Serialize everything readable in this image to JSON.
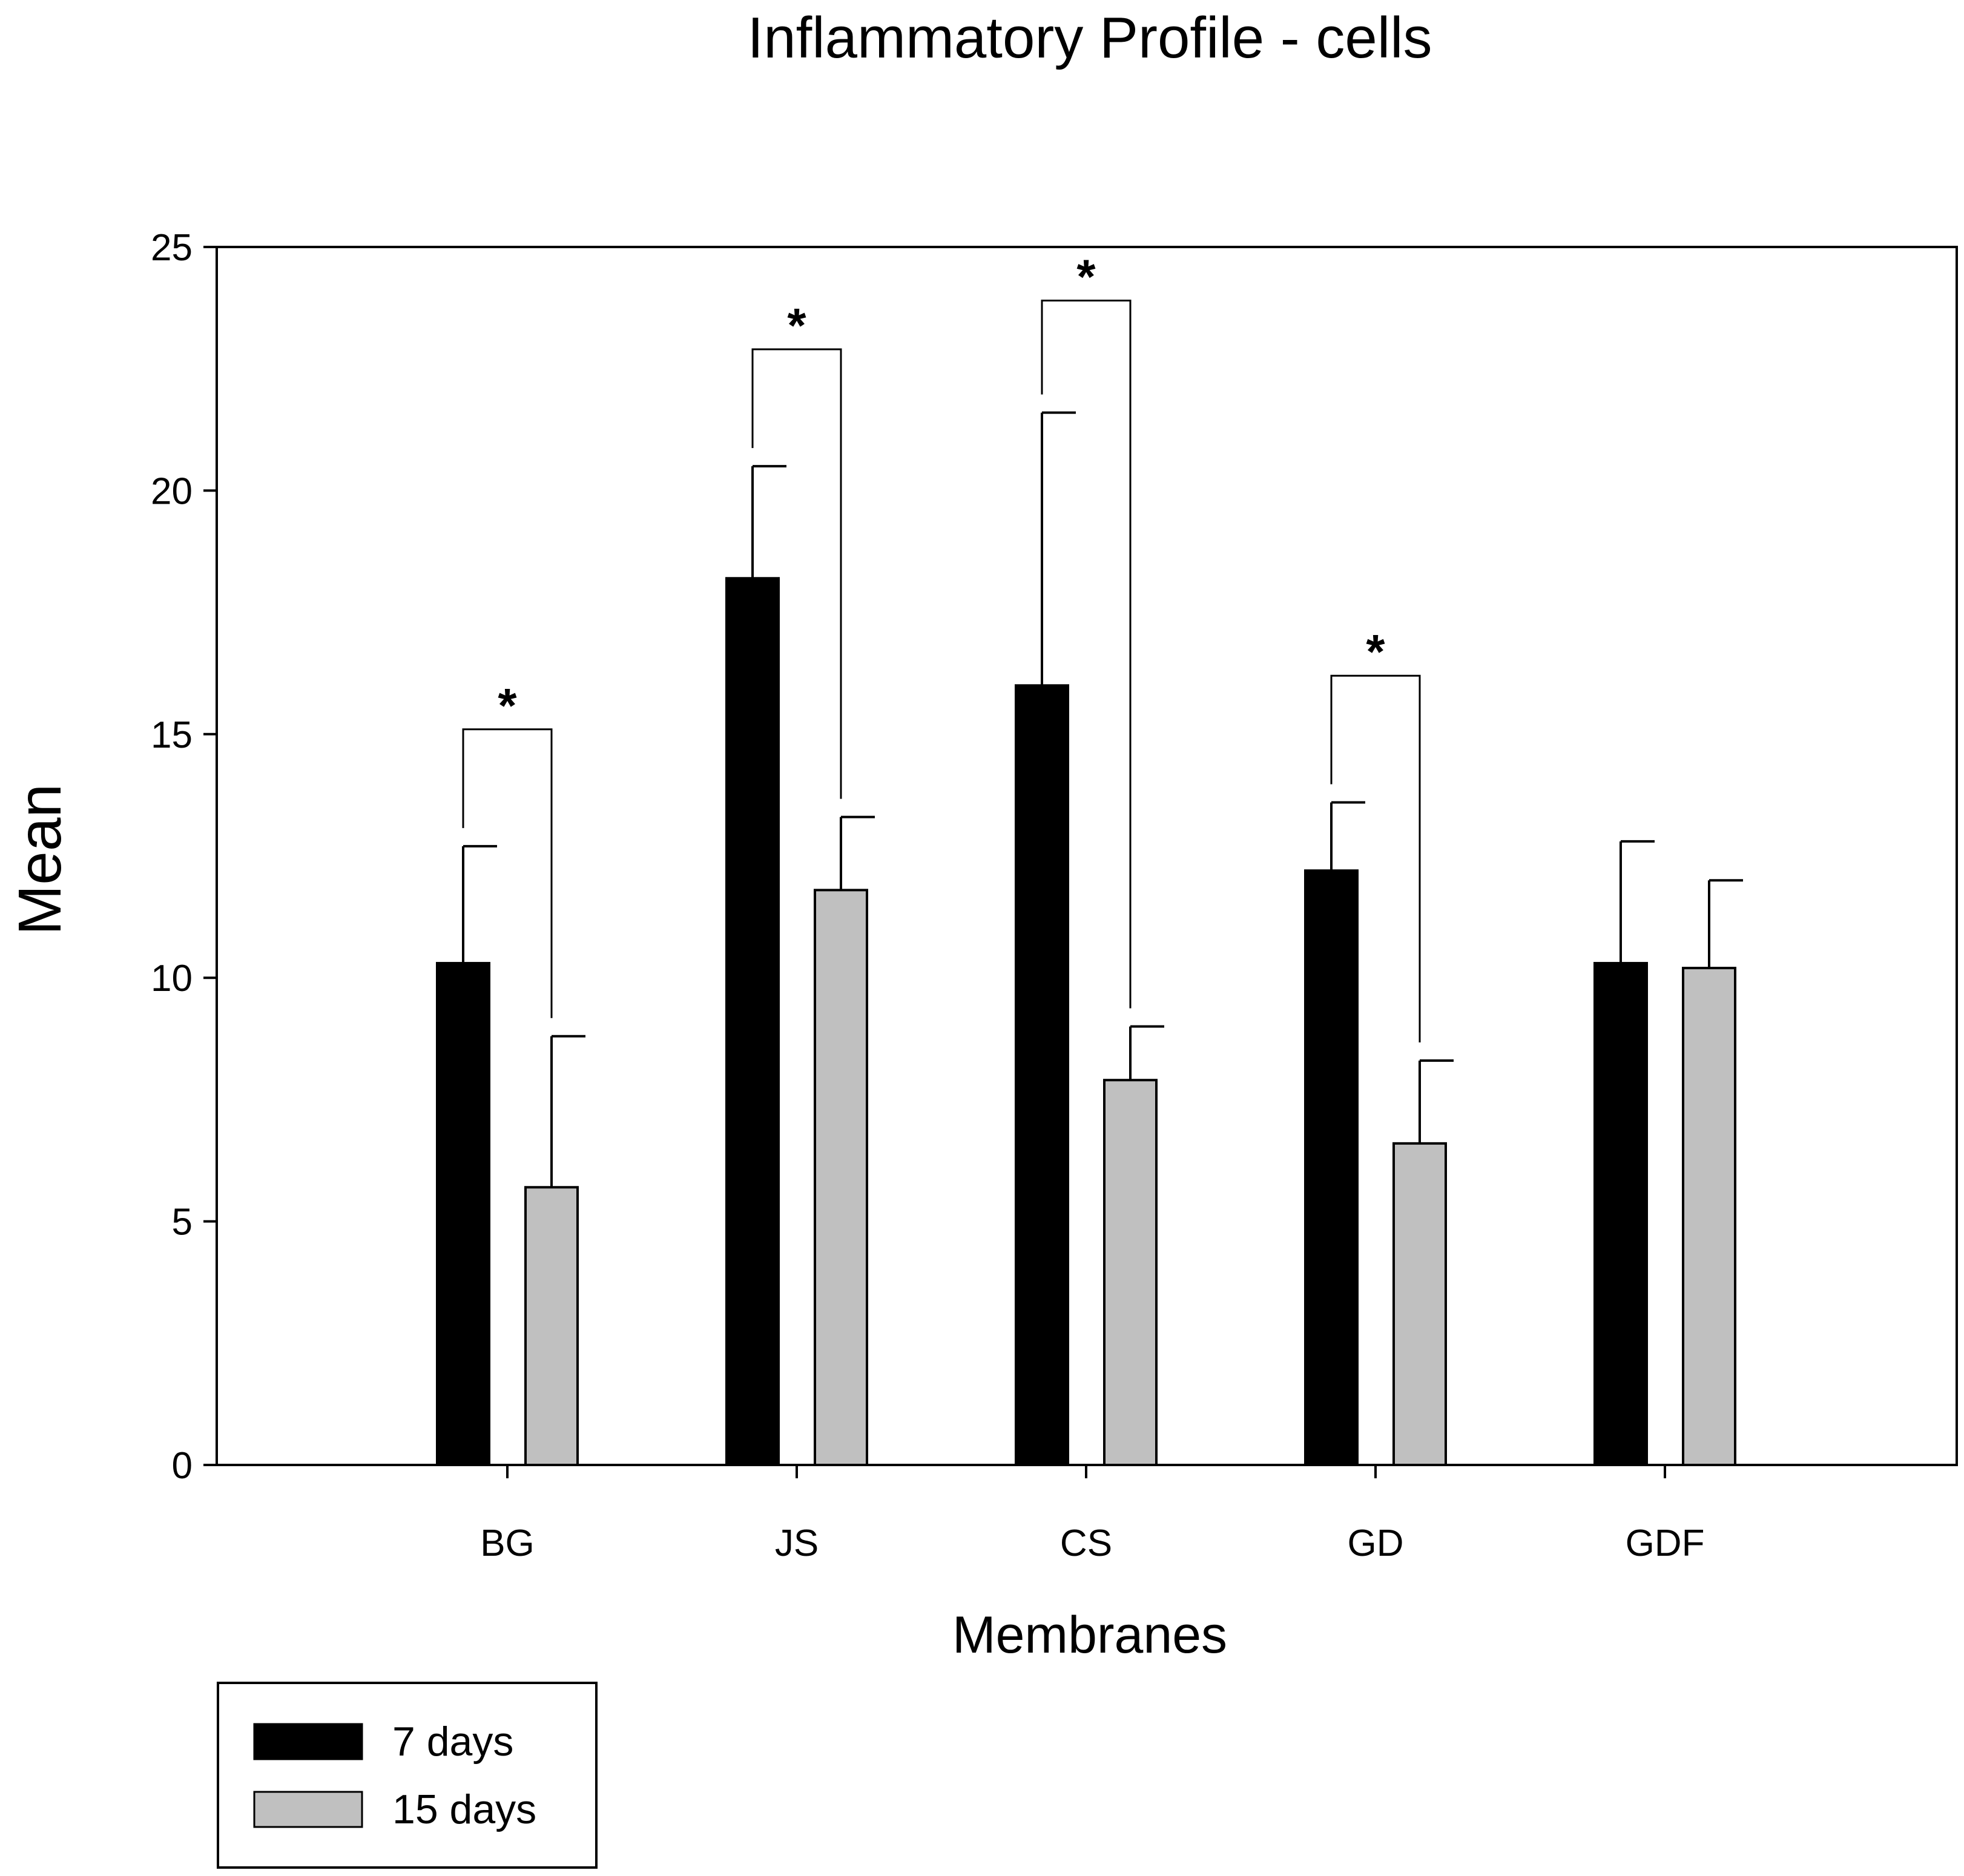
{
  "chart_data": {
    "type": "bar",
    "title": "Inflammatory Profile - cells",
    "xlabel": "Membranes",
    "ylabel": "Mean",
    "ylim": [
      0,
      25
    ],
    "yticks": [
      0,
      5,
      10,
      15,
      20,
      25
    ],
    "categories": [
      "BG",
      "JS",
      "CS",
      "GD",
      "GDF"
    ],
    "series": [
      {
        "name": "7 days",
        "color": "#000000",
        "values": [
          10.3,
          18.2,
          16.0,
          12.2,
          10.3
        ],
        "errors": [
          2.4,
          2.3,
          5.6,
          1.4,
          2.5
        ]
      },
      {
        "name": "15 days",
        "color": "#c0c0c0",
        "values": [
          5.7,
          11.8,
          7.9,
          6.6,
          10.2
        ],
        "errors": [
          3.1,
          1.5,
          1.1,
          1.7,
          1.8
        ]
      }
    ],
    "significance": [
      {
        "category": "BG",
        "label": "*",
        "bracket_y": 15.1
      },
      {
        "category": "JS",
        "label": "*",
        "bracket_y": 22.9
      },
      {
        "category": "CS",
        "label": "*",
        "bracket_y": 23.9
      },
      {
        "category": "GD",
        "label": "*",
        "bracket_y": 16.2
      }
    ],
    "legend": {
      "position": "bottom-left",
      "entries": [
        "7 days",
        "15 days"
      ]
    }
  }
}
